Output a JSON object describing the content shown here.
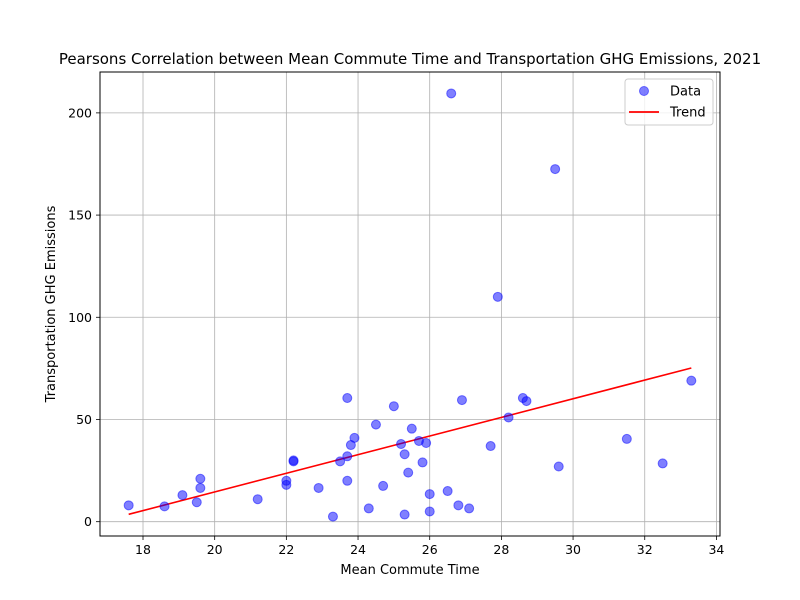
{
  "chart_data": {
    "type": "scatter",
    "title": "Pearsons Correlation between Mean Commute Time and Transportation GHG Emissions, 2021",
    "xlabel": "Mean Commute Time",
    "ylabel": "Transportation GHG Emissions",
    "xlim": [
      16.8,
      34.1
    ],
    "ylim": [
      -7,
      220
    ],
    "xticks": [
      18,
      20,
      22,
      24,
      26,
      28,
      30,
      32,
      34
    ],
    "yticks": [
      0,
      50,
      100,
      150,
      200
    ],
    "grid": true,
    "legend_position": "top-right",
    "series": [
      {
        "name": "Data",
        "kind": "scatter",
        "color": "#0000ff",
        "alpha": 0.5,
        "points": [
          [
            17.6,
            8
          ],
          [
            18.6,
            7.5
          ],
          [
            19.1,
            13
          ],
          [
            19.5,
            9.5
          ],
          [
            19.6,
            21
          ],
          [
            19.6,
            16.5
          ],
          [
            21.2,
            11
          ],
          [
            22.0,
            20
          ],
          [
            22.0,
            18
          ],
          [
            22.2,
            30
          ],
          [
            22.2,
            29.5
          ],
          [
            22.9,
            16.5
          ],
          [
            23.3,
            2.5
          ],
          [
            23.5,
            29.5
          ],
          [
            23.7,
            32
          ],
          [
            23.7,
            60.5
          ],
          [
            23.7,
            20
          ],
          [
            23.8,
            37.5
          ],
          [
            23.9,
            41
          ],
          [
            24.3,
            6.5
          ],
          [
            24.5,
            47.5
          ],
          [
            24.7,
            17.5
          ],
          [
            25.0,
            56.5
          ],
          [
            25.2,
            38
          ],
          [
            25.3,
            33
          ],
          [
            25.3,
            3.5
          ],
          [
            25.4,
            24
          ],
          [
            25.5,
            45.5
          ],
          [
            25.7,
            39.5
          ],
          [
            25.8,
            29
          ],
          [
            25.9,
            38.5
          ],
          [
            26.0,
            13.5
          ],
          [
            26.0,
            5
          ],
          [
            26.5,
            15
          ],
          [
            26.6,
            209.5
          ],
          [
            26.8,
            8
          ],
          [
            26.9,
            59.5
          ],
          [
            27.1,
            6.5
          ],
          [
            27.7,
            37
          ],
          [
            27.9,
            110
          ],
          [
            28.2,
            51
          ],
          [
            28.6,
            60.5
          ],
          [
            28.7,
            59
          ],
          [
            29.5,
            172.5
          ],
          [
            29.6,
            27
          ],
          [
            31.5,
            40.5
          ],
          [
            32.5,
            28.5
          ],
          [
            33.3,
            69
          ]
        ]
      },
      {
        "name": "Trend",
        "kind": "line",
        "color": "#ff0000",
        "points": [
          [
            17.6,
            3.6
          ],
          [
            33.3,
            75.2
          ]
        ]
      }
    ]
  }
}
